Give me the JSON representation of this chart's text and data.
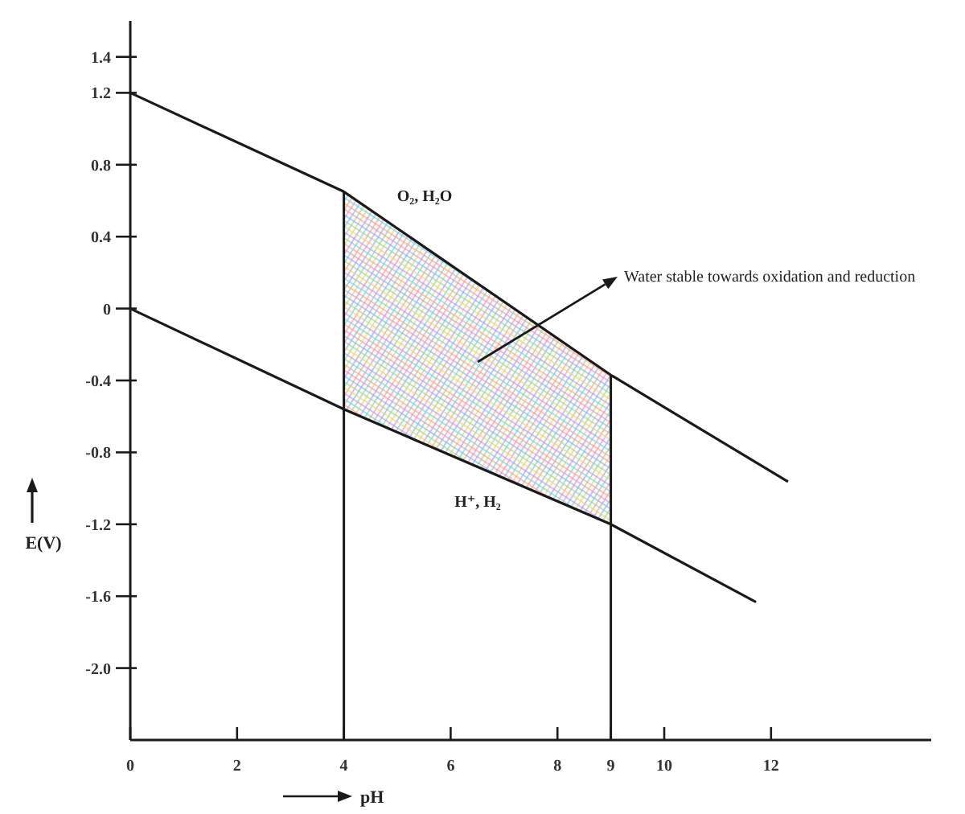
{
  "chart_data": {
    "type": "line",
    "xlabel": "pH",
    "ylabel": "E(V)",
    "xlim": [
      0,
      15
    ],
    "xticks": [
      0,
      2,
      4,
      6,
      8,
      9,
      10,
      12
    ],
    "ylim": [
      -2.4,
      1.6
    ],
    "yticks": [
      {
        "value": -2,
        "label": "-2.0"
      },
      -1.6,
      -1.2,
      -0.8,
      -0.4,
      0,
      0.4,
      0.8,
      1.2,
      1.4
    ],
    "series": [
      {
        "color": "#1a1a1a",
        "x": [
          0,
          4,
          9,
          12.3
        ],
        "values": [
          1.2,
          0.65,
          -0.37,
          -0.96
        ],
        "lower": [
          null,
          -0.56,
          -1.2,
          null
        ],
        "upper": [
          null,
          0.65,
          -0.37,
          null
        ]
      },
      {
        "color": "#1a1a1a",
        "x": [
          0,
          4,
          9,
          11.7
        ],
        "values": [
          0,
          -0.56,
          -1.2,
          -1.63
        ]
      }
    ],
    "ref_lines": [
      {
        "axis": "x",
        "value": 4
      },
      {
        "axis": "x",
        "value": 9
      }
    ],
    "annotations": [
      "O₂, H₂O",
      "H⁺, H₂",
      "Water stable towards oxidation and reduction"
    ]
  }
}
